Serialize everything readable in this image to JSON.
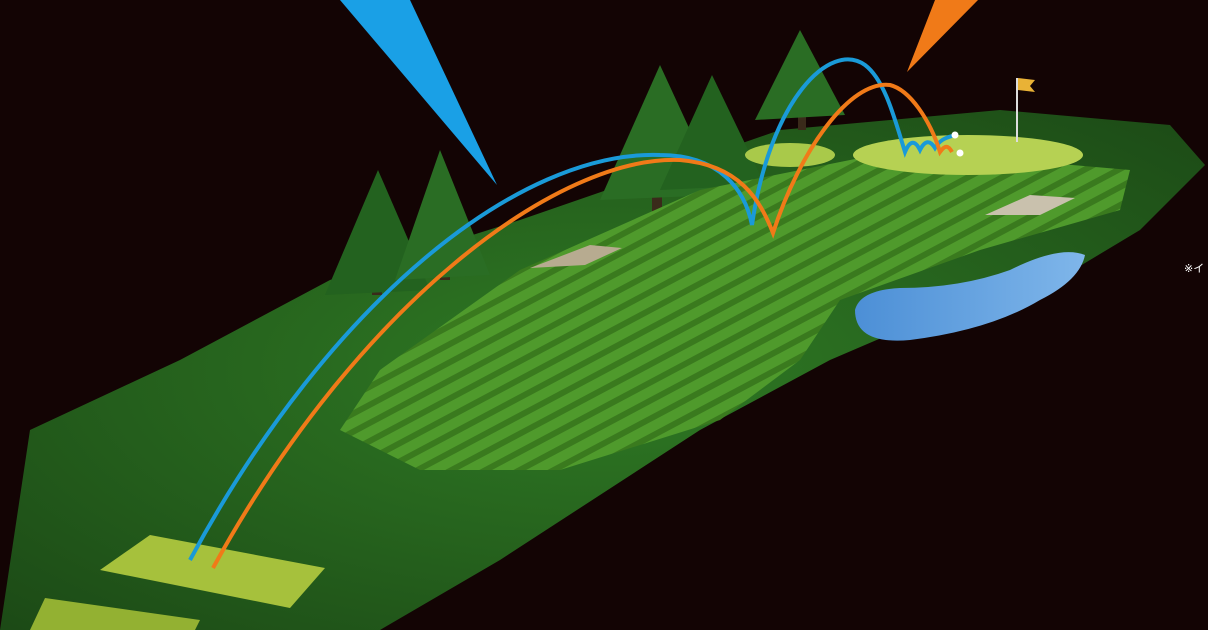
{
  "caption": "※イ"
}
